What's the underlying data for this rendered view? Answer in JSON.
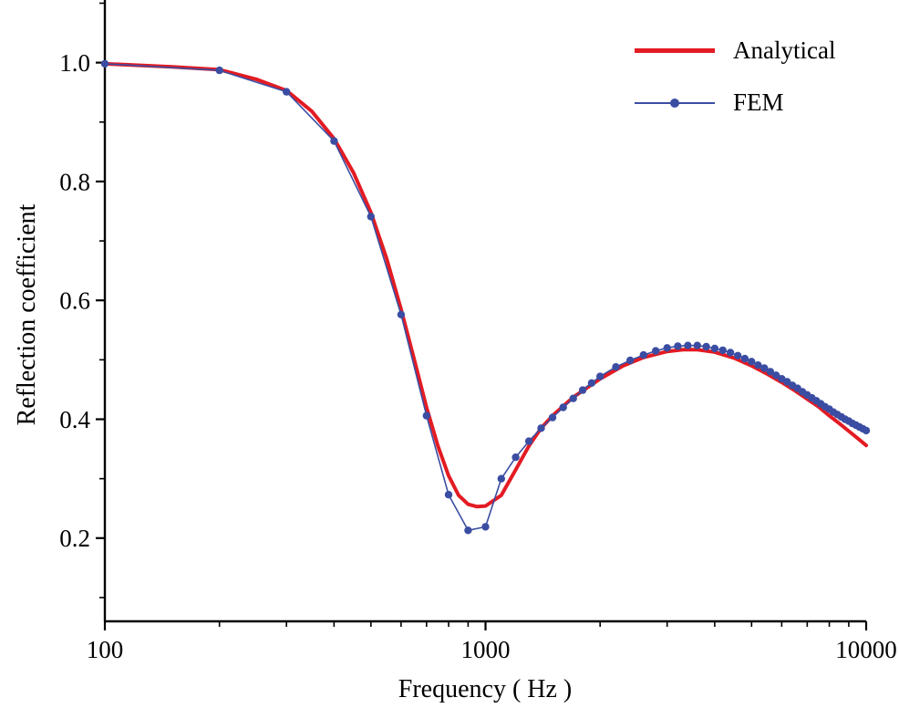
{
  "chart_data": {
    "type": "line",
    "title": "",
    "xlabel": "Frequency ( Hz )",
    "ylabel": "Reflection coefficient",
    "x_scale": "log",
    "grid": false,
    "legend_position": "top-right",
    "xlim": [
      100,
      10000
    ],
    "ylim": [
      0.06,
      1.09
    ],
    "x_major_ticks": [
      100,
      1000,
      10000
    ],
    "x_tick_labels": [
      "100",
      "1000",
      "10000"
    ],
    "x_minor_ticks": [
      200,
      300,
      400,
      500,
      600,
      700,
      800,
      900,
      2000,
      3000,
      4000,
      5000,
      6000,
      7000,
      8000,
      9000
    ],
    "y_major_ticks": [
      0.2,
      0.4,
      0.6,
      0.8,
      1.0
    ],
    "y_tick_labels": [
      "0.2",
      "0.4",
      "0.6",
      "0.8",
      "1.0"
    ],
    "y_minor_ticks": [
      0.1,
      0.3,
      0.5,
      0.7,
      0.9,
      1.1
    ],
    "series": [
      {
        "name": "Analytical",
        "color": "#e31b23",
        "line_width": 4,
        "marker": "none",
        "x": [
          100,
          150,
          200,
          250,
          300,
          350,
          400,
          450,
          500,
          550,
          600,
          650,
          700,
          750,
          800,
          850,
          900,
          950,
          1000,
          1100,
          1200,
          1300,
          1400,
          1500,
          1700,
          2000,
          2300,
          2600,
          3000,
          3300,
          3600,
          4000,
          4500,
          5000,
          5500,
          6000,
          6500,
          7000,
          7500,
          8000,
          8500,
          9000,
          9500,
          10000
        ],
        "y": [
          0.998,
          0.993,
          0.988,
          0.972,
          0.953,
          0.918,
          0.872,
          0.815,
          0.748,
          0.67,
          0.585,
          0.5,
          0.42,
          0.355,
          0.305,
          0.272,
          0.257,
          0.253,
          0.254,
          0.272,
          0.315,
          0.355,
          0.385,
          0.406,
          0.437,
          0.468,
          0.49,
          0.504,
          0.514,
          0.517,
          0.517,
          0.513,
          0.503,
          0.49,
          0.476,
          0.462,
          0.448,
          0.434,
          0.421,
          0.406,
          0.393,
          0.38,
          0.368,
          0.356
        ]
      },
      {
        "name": "FEM",
        "color": "#3b4da2",
        "line_width": 1.6,
        "marker": "circle",
        "marker_size": 4.2,
        "x": [
          100,
          200,
          300,
          400,
          500,
          600,
          700,
          800,
          900,
          1000,
          1100,
          1200,
          1300,
          1400,
          1500,
          1600,
          1700,
          1800,
          1900,
          2000,
          2200,
          2400,
          2600,
          2800,
          3000,
          3200,
          3400,
          3600,
          3800,
          4000,
          4200,
          4400,
          4600,
          4800,
          5000,
          5200,
          5400,
          5600,
          5800,
          6000,
          6200,
          6400,
          6600,
          6800,
          7000,
          7200,
          7400,
          7600,
          7800,
          8000,
          8200,
          8400,
          8600,
          8800,
          9000,
          9200,
          9400,
          9600,
          9800,
          10000
        ],
        "y": [
          0.998,
          0.987,
          0.951,
          0.868,
          0.741,
          0.576,
          0.406,
          0.273,
          0.213,
          0.219,
          0.3,
          0.336,
          0.363,
          0.385,
          0.403,
          0.42,
          0.435,
          0.449,
          0.461,
          0.472,
          0.488,
          0.499,
          0.508,
          0.515,
          0.52,
          0.523,
          0.524,
          0.524,
          0.522,
          0.519,
          0.516,
          0.512,
          0.507,
          0.502,
          0.497,
          0.491,
          0.486,
          0.48,
          0.474,
          0.468,
          0.463,
          0.457,
          0.452,
          0.446,
          0.441,
          0.436,
          0.431,
          0.426,
          0.421,
          0.417,
          0.412,
          0.408,
          0.404,
          0.4,
          0.397,
          0.393,
          0.39,
          0.387,
          0.384,
          0.381
        ]
      }
    ]
  }
}
